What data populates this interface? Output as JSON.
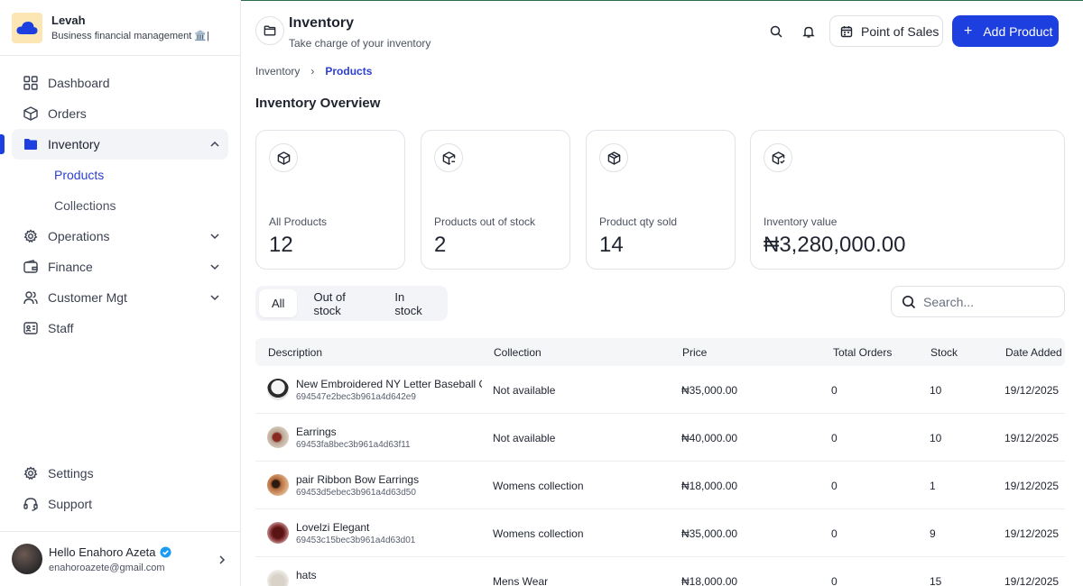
{
  "brand": {
    "name": "Levah",
    "subtitle": "Business financial management 🏛️|"
  },
  "sidebar": {
    "items": [
      {
        "label": "Dashboard"
      },
      {
        "label": "Orders"
      },
      {
        "label": "Inventory",
        "sub": [
          "Products",
          "Collections"
        ]
      },
      {
        "label": "Operations"
      },
      {
        "label": "Finance"
      },
      {
        "label": "Customer Mgt"
      },
      {
        "label": "Staff"
      }
    ],
    "bottom": [
      {
        "label": "Settings"
      },
      {
        "label": "Support"
      }
    ],
    "user": {
      "name": "Hello Enahoro Azeta",
      "email": "enahoroazete@gmail.com"
    }
  },
  "header": {
    "title": "Inventory",
    "subtitle": "Take charge of your inventory",
    "pos_label": "Point of Sales",
    "add_label": "Add Product"
  },
  "breadcrumb": {
    "parent": "Inventory",
    "separator": "›",
    "current": "Products"
  },
  "overview": {
    "title": "Inventory Overview",
    "cards": [
      {
        "label": "All Products",
        "value": "12"
      },
      {
        "label": "Products out of stock",
        "value": "2"
      },
      {
        "label": "Product qty sold",
        "value": "14"
      },
      {
        "label": "Inventory value",
        "value": "₦3,280,000.00"
      }
    ]
  },
  "filters": {
    "tabs": [
      "All",
      "Out of stock",
      "In stock"
    ],
    "active": "All"
  },
  "search": {
    "placeholder": "Search..."
  },
  "table": {
    "columns": [
      "Description",
      "Collection",
      "Price",
      "Total Orders",
      "Stock",
      "Date Added"
    ],
    "rows": [
      {
        "name": "New Embroidered NY Letter Baseball C",
        "id": "694547e2bec3b961a4d642e9",
        "collection": "Not available",
        "price": "₦35,000.00",
        "orders": "0",
        "stock": "10",
        "date": "19/12/2025"
      },
      {
        "name": "Earrings",
        "id": "69453fa8bec3b961a4d63f11",
        "collection": "Not available",
        "price": "₦40,000.00",
        "orders": "0",
        "stock": "10",
        "date": "19/12/2025"
      },
      {
        "name": "pair Ribbon Bow Earrings",
        "id": "69453d5ebec3b961a4d63d50",
        "collection": "Womens collection",
        "price": "₦18,000.00",
        "orders": "0",
        "stock": "1",
        "date": "19/12/2025"
      },
      {
        "name": "Lovelzi Elegant",
        "id": "69453c15bec3b961a4d63d01",
        "collection": "Womens collection",
        "price": "₦35,000.00",
        "orders": "0",
        "stock": "9",
        "date": "19/12/2025"
      },
      {
        "name": "hats",
        "id": "",
        "collection": "Mens Wear",
        "price": "₦18,000.00",
        "orders": "0",
        "stock": "15",
        "date": "19/12/2025"
      }
    ]
  },
  "colors": {
    "accent": "#1d3fe0",
    "active_text": "#2c3fd1",
    "verified": "#1d9bf0"
  }
}
